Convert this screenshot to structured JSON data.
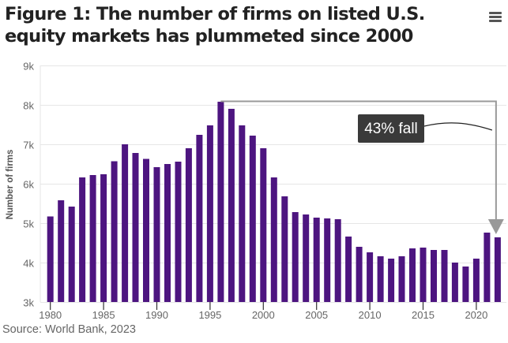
{
  "header": {
    "title": "Figure 1: The number of firms on listed U.S. equity markets has plummeted since 2000",
    "menu_icon": "hamburger-menu-icon"
  },
  "source": "Source: World Bank, 2023",
  "colors": {
    "bar": "#4d1580",
    "grid": "#e6e6e6",
    "annotation_line": "#999999",
    "label_bg": "#3a3a3a",
    "label_text": "#ffffff",
    "axis_text": "#666666"
  },
  "chart_data": {
    "type": "bar",
    "title": "Figure 1: The number of firms on listed U.S. equity markets has plummeted since 2000",
    "xlabel": "",
    "ylabel": "Number of firms",
    "ylim": [
      3000,
      9000
    ],
    "xlim": [
      1980,
      2022
    ],
    "grid": true,
    "yticks": [
      3000,
      4000,
      5000,
      6000,
      7000,
      8000,
      9000
    ],
    "ytick_labels": [
      "3k",
      "4k",
      "5k",
      "6k",
      "7k",
      "8k",
      "9k"
    ],
    "xticks": [
      1980,
      1985,
      1990,
      1995,
      2000,
      2005,
      2010,
      2015,
      2020
    ],
    "xtick_labels": [
      "1980",
      "1985",
      "1990",
      "1995",
      "2000",
      "2005",
      "2010",
      "2015",
      "2020"
    ],
    "categories": [
      1980,
      1981,
      1982,
      1983,
      1984,
      1985,
      1986,
      1987,
      1988,
      1989,
      1990,
      1991,
      1992,
      1993,
      1994,
      1995,
      1996,
      1997,
      1998,
      1999,
      2000,
      2001,
      2002,
      2003,
      2004,
      2005,
      2006,
      2007,
      2008,
      2009,
      2010,
      2011,
      2012,
      2013,
      2014,
      2015,
      2016,
      2017,
      2018,
      2019,
      2020,
      2021,
      2022
    ],
    "values": [
      5170,
      5580,
      5420,
      6160,
      6220,
      6240,
      6570,
      7000,
      6780,
      6630,
      6420,
      6500,
      6560,
      6900,
      7240,
      7480,
      8080,
      7900,
      7480,
      7220,
      6900,
      6160,
      5680,
      5280,
      5220,
      5140,
      5120,
      5100,
      4660,
      4400,
      4260,
      4160,
      4100,
      4160,
      4360,
      4380,
      4320,
      4320,
      4000,
      3900,
      4100,
      4760,
      4640
    ],
    "annotation": {
      "text": "43% fall",
      "from_year": 1996,
      "to_year": 2022
    }
  }
}
